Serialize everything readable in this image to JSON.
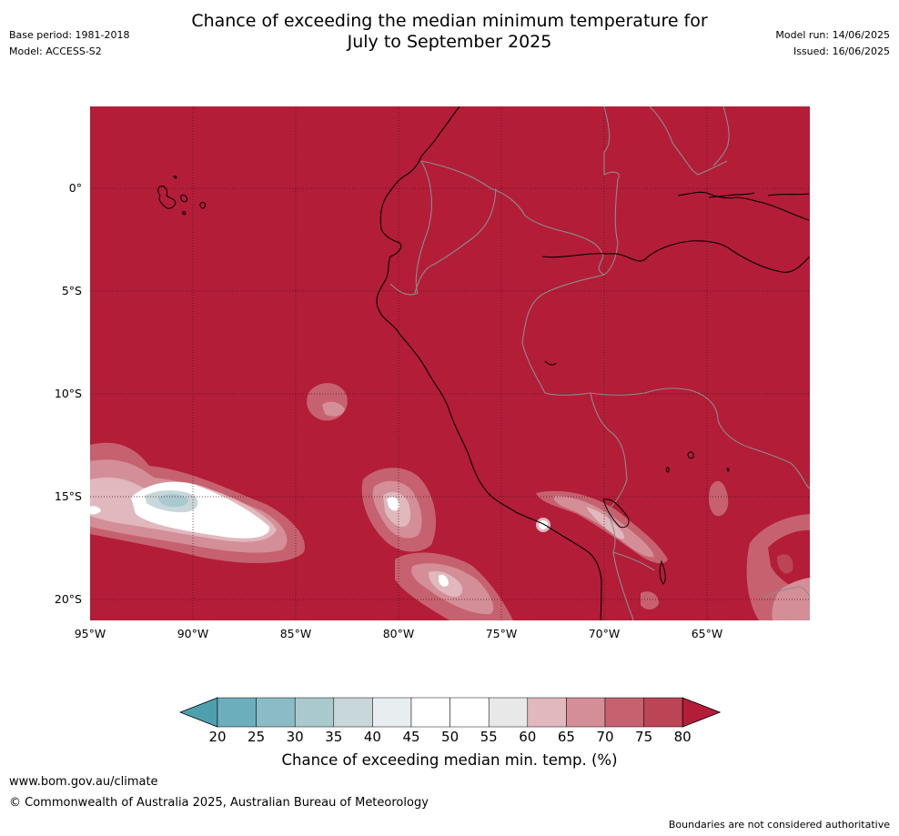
{
  "header": {
    "base_period": "Base period: 1981-2018",
    "model": "Model: ACCESS-S2",
    "title_line1": "Chance of exceeding the median minimum temperature for",
    "title_line2": "July to September 2025",
    "model_run": "Model run: 14/06/2025",
    "issued": "Issued: 16/06/2025"
  },
  "map": {
    "lon_ticks": [
      "95°W",
      "90°W",
      "85°W",
      "80°W",
      "75°W",
      "70°W",
      "65°W"
    ],
    "lat_ticks": [
      "0°",
      "5°S",
      "10°S",
      "15°S",
      "20°S"
    ],
    "background_category": "80+",
    "background_color": "#b31d38",
    "coastline_color": "#000000",
    "border_color": "#808080"
  },
  "colorbar": {
    "ticks": [
      "20",
      "25",
      "30",
      "35",
      "40",
      "45",
      "50",
      "55",
      "60",
      "65",
      "70",
      "75",
      "80"
    ],
    "label": "Chance of exceeding median min. temp. (%)",
    "colors": [
      "#4ea0ae",
      "#6caebb",
      "#8bbcc6",
      "#a9c9ce",
      "#c8d7d9",
      "#e8eef0",
      "#ffffff",
      "#ffffff",
      "#e9e8e9",
      "#e0b8be",
      "#d48e97",
      "#c6626f",
      "#bb4455",
      "#b31d38"
    ]
  },
  "footer": {
    "url": "www.bom.gov.au/climate",
    "copyright": "© Commonwealth of Australia 2025, Australian Bureau of Meteorology",
    "disclaimer": "Boundaries are not considered authoritative"
  }
}
